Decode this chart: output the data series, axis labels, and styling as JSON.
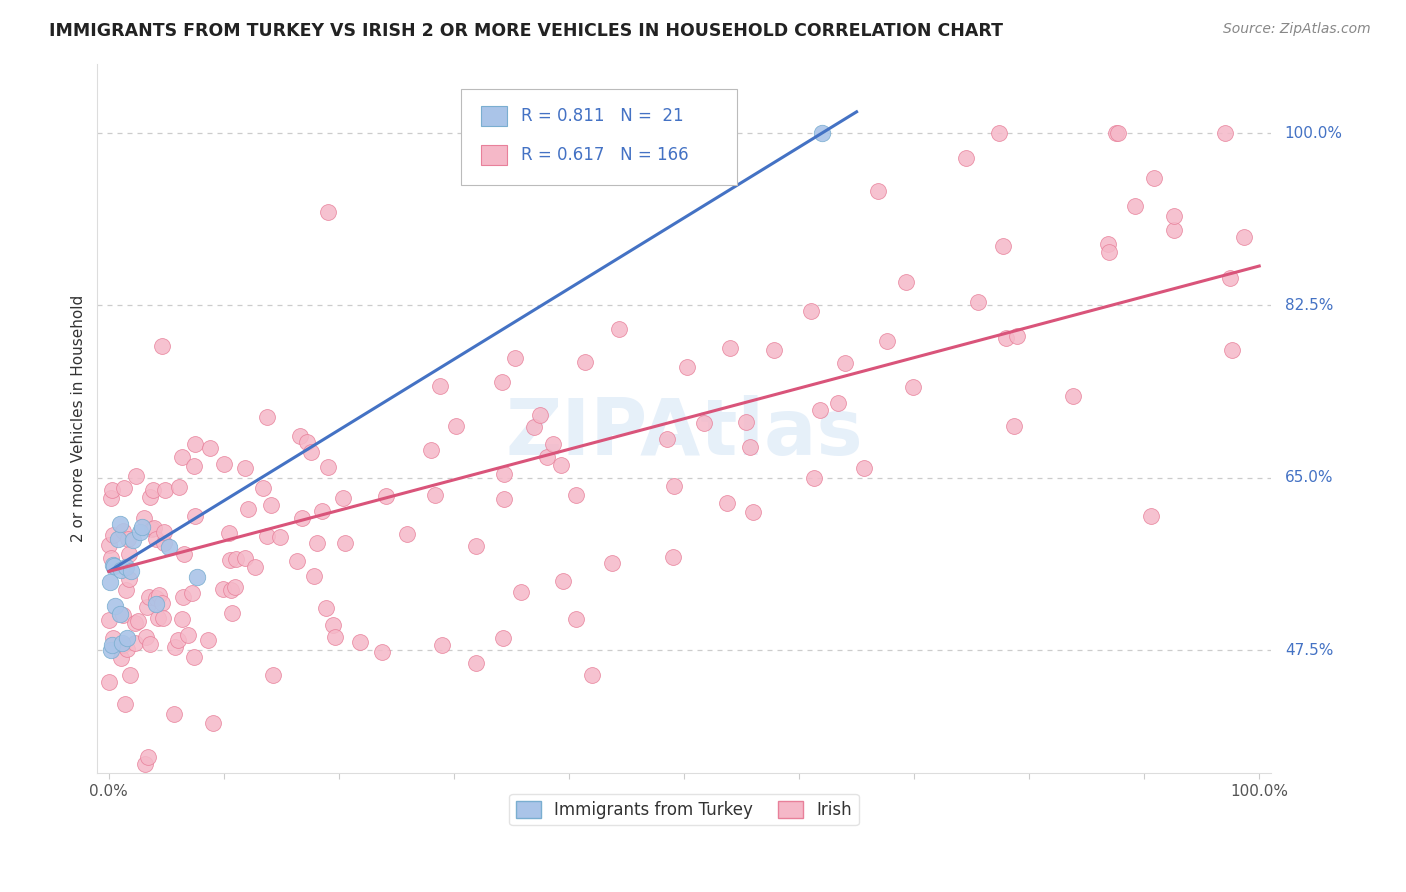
{
  "title": "IMMIGRANTS FROM TURKEY VS IRISH 2 OR MORE VEHICLES IN HOUSEHOLD CORRELATION CHART",
  "source": "Source: ZipAtlas.com",
  "ylabel": "2 or more Vehicles in Household",
  "watermark": "ZIPAtlas",
  "legend_label1": "Immigrants from Turkey",
  "legend_label2": "Irish",
  "R1": 0.811,
  "N1": 21,
  "R2": 0.617,
  "N2": 166,
  "color_turkey_fill": "#aac4e8",
  "color_turkey_edge": "#7aaed0",
  "color_irish_fill": "#f5b8c8",
  "color_irish_edge": "#e8809a",
  "line_color_turkey": "#4472c4",
  "line_color_irish": "#d9547a",
  "grid_color": "#cccccc",
  "ytick_color": "#4472c4",
  "title_color": "#222222",
  "source_color": "#888888",
  "ylabel_color": "#333333",
  "xmin": 0.0,
  "xmax": 1.0,
  "ymin": 0.35,
  "ymax": 1.07,
  "ytick_vals": [
    0.475,
    0.65,
    0.825,
    1.0
  ],
  "ytick_labels": [
    "47.5%",
    "65.0%",
    "82.5%",
    "100.0%"
  ],
  "turkey_line_x0": 0.0,
  "turkey_line_y0": 0.555,
  "turkey_line_x1": 0.62,
  "turkey_line_y1": 1.0,
  "irish_line_x0": 0.0,
  "irish_line_y0": 0.555,
  "irish_line_x1": 1.0,
  "irish_line_y1": 0.865,
  "seed": 42
}
